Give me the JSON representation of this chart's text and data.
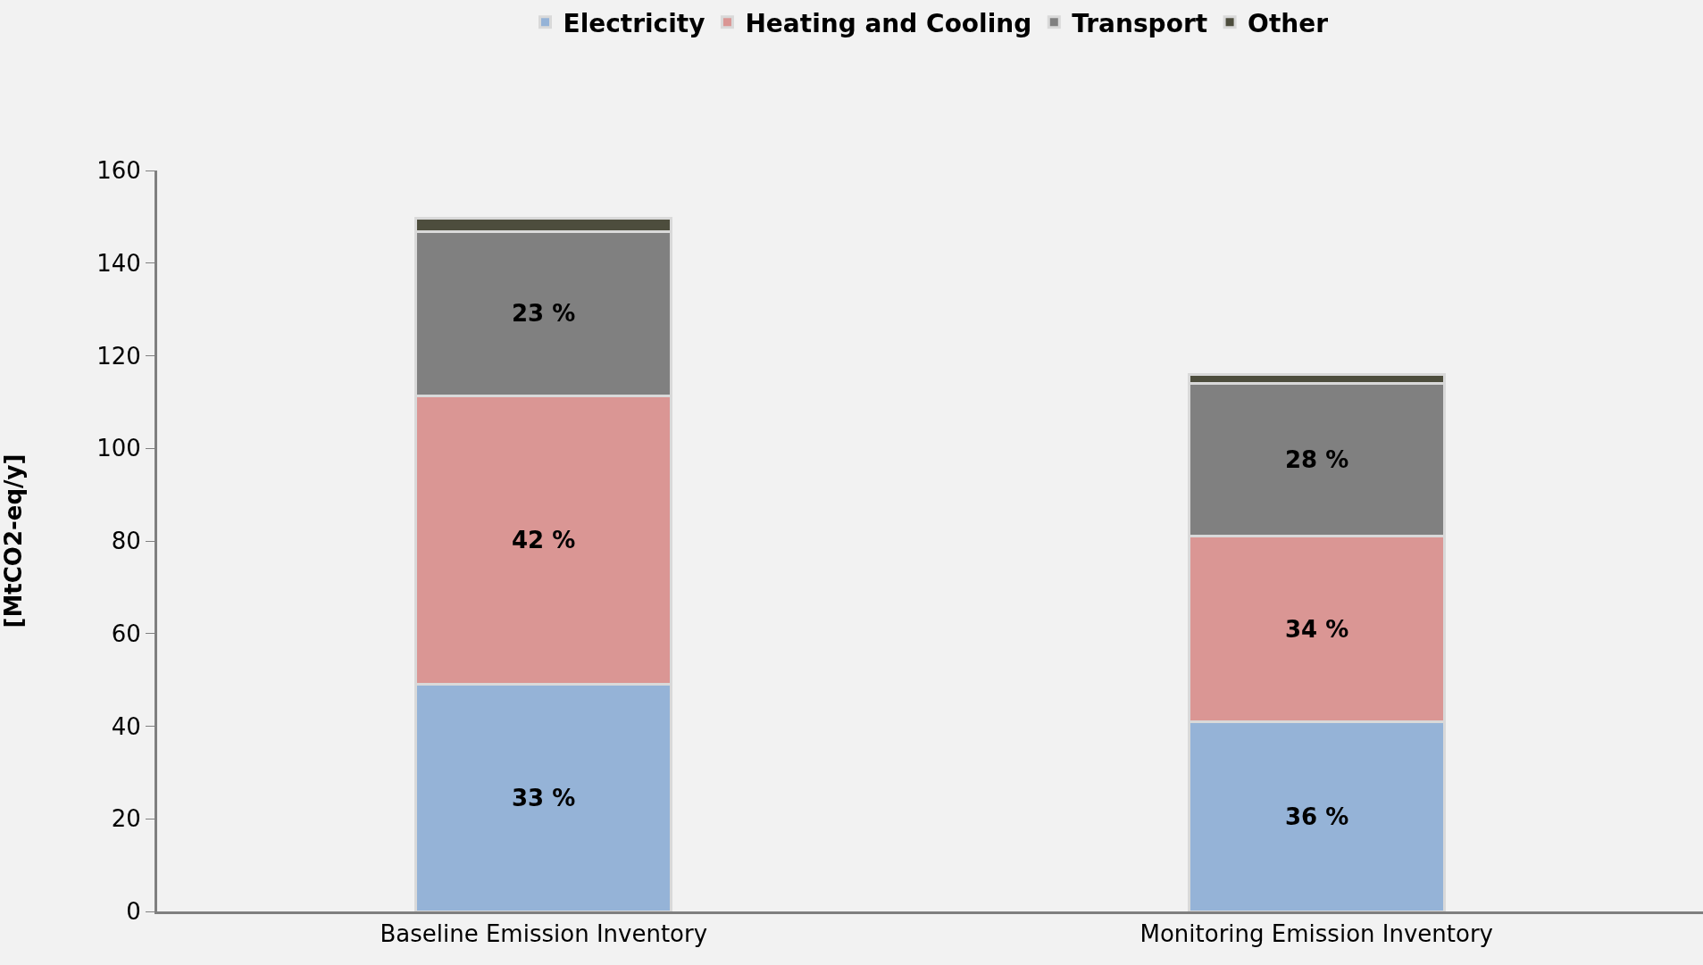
{
  "chart_data": {
    "type": "bar",
    "stacked": true,
    "ylabel": "[MtCO2-eq/y]",
    "categories": [
      "Baseline Emission Inventory",
      "Monitoring Emission Inventory"
    ],
    "series": [
      {
        "name": "Electricity",
        "color": "#95b3d7",
        "values": [
          49,
          41
        ]
      },
      {
        "name": "Heating and Cooling",
        "color": "#da9694",
        "values": [
          62.4,
          40
        ]
      },
      {
        "name": "Transport",
        "color": "#808080",
        "values": [
          35.4,
          33
        ]
      },
      {
        "name": "Other",
        "color": "#4d4d3d",
        "values": [
          2.8,
          2
        ]
      }
    ],
    "annotations": [
      "33 %",
      "42 %",
      "23 %",
      "36 %",
      "34 %",
      "28 %"
    ],
    "ylim": [
      0,
      160
    ],
    "yticks": [
      0,
      20,
      40,
      60,
      80,
      100,
      120,
      140,
      160
    ],
    "grid": false,
    "legend": "top"
  }
}
